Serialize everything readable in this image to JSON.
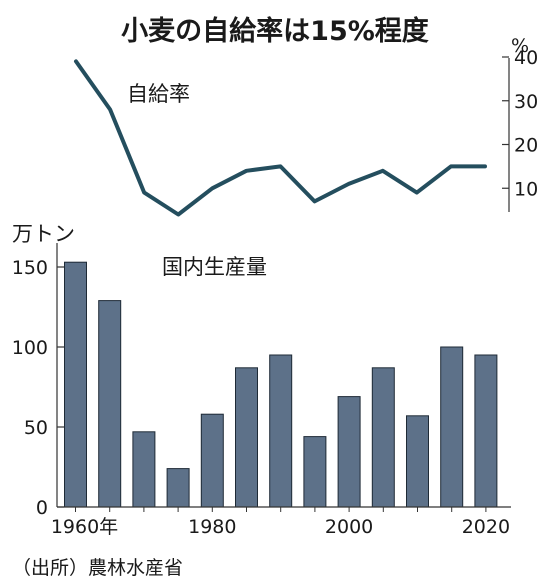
{
  "chart_data": [
    {
      "type": "line",
      "title": "小麦の自給率は15%程度",
      "series": [
        {
          "name": "自給率",
          "x": [
            1960,
            1965,
            1970,
            1975,
            1980,
            1985,
            1990,
            1995,
            2000,
            2005,
            2010,
            2015,
            2020
          ],
          "values": [
            39,
            28,
            9,
            4,
            10,
            14,
            15,
            7,
            11,
            14,
            9,
            15,
            15
          ]
        }
      ],
      "ylabel": "%",
      "yticks": [
        10,
        20,
        30,
        40
      ],
      "ylim": [
        0,
        42
      ],
      "xlim": [
        1960,
        2020
      ],
      "axis_side": "right",
      "line_color": "#244e5e"
    },
    {
      "type": "bar",
      "series": [
        {
          "name": "国内生産量",
          "x": [
            1960,
            1965,
            1970,
            1975,
            1980,
            1985,
            1990,
            1995,
            2000,
            2005,
            2010,
            2015,
            2020
          ],
          "values": [
            153,
            129,
            47,
            24,
            58,
            87,
            95,
            44,
            69,
            87,
            57,
            100,
            95
          ]
        }
      ],
      "ylabel": "万トン",
      "yticks": [
        0,
        50,
        100,
        150
      ],
      "ylim": [
        0,
        190
      ],
      "xticks": [
        "1960年",
        "1980",
        "2000",
        "2020"
      ],
      "bar_color": "#5d7189",
      "grid": false
    }
  ],
  "source": "（出所）農林水産省"
}
